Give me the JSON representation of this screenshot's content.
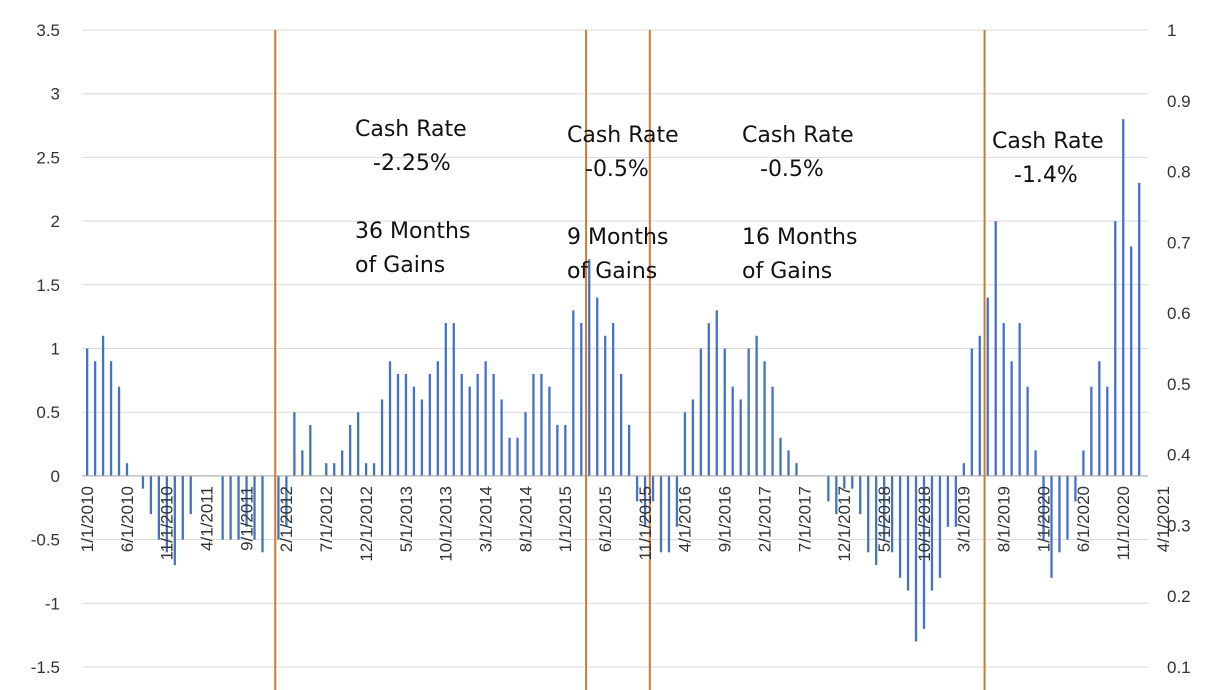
{
  "chart_data": {
    "type": "bar",
    "y_left": {
      "min": -1.5,
      "max": 3.5,
      "ticks": [
        "3.5",
        "3",
        "2.5",
        "2",
        "1.5",
        "1",
        "0.5",
        "0",
        "-0.5",
        "-1",
        "-1.5"
      ]
    },
    "y_right": {
      "min": 0.1,
      "max": 1,
      "ticks": [
        "1",
        "0.9",
        "0.8",
        "0.7",
        "0.6",
        "0.5",
        "0.4",
        "0.3",
        "0.2",
        "0.1"
      ]
    },
    "x_tick_labels": [
      "1/1/2010",
      "6/1/2010",
      "11/1/2010",
      "4/1/2011",
      "9/1/2011",
      "2/1/2012",
      "7/1/2012",
      "12/1/2012",
      "5/1/2013",
      "10/1/2013",
      "3/1/2014",
      "8/1/2014",
      "1/1/2015",
      "6/1/2015",
      "11/1/2015",
      "4/1/2016",
      "9/1/2016",
      "2/1/2017",
      "7/1/2017",
      "12/1/2017",
      "5/1/2018",
      "10/1/2018",
      "3/1/2019",
      "8/1/2019",
      "1/1/2020",
      "6/1/2020",
      "11/1/2020",
      "4/1/2021"
    ],
    "series": [
      {
        "color": "#4472C4",
        "values": [
          1.0,
          0.9,
          1.1,
          0.9,
          0.7,
          0.1,
          0,
          -0.1,
          -0.3,
          -0.5,
          -0.6,
          -0.7,
          -0.5,
          -0.3,
          0,
          0,
          0,
          -0.5,
          -0.5,
          -0.5,
          -0.4,
          -0.5,
          -0.6,
          0,
          -0.5,
          -0.4,
          0.5,
          0.2,
          0.4,
          0,
          0.1,
          0.1,
          0.2,
          0.4,
          0.5,
          0.1,
          0.1,
          0.6,
          0.9,
          0.8,
          0.8,
          0.7,
          0.6,
          0.8,
          0.9,
          1.2,
          1.2,
          0.8,
          0.7,
          0.8,
          0.9,
          0.8,
          0.6,
          0.3,
          0.3,
          0.5,
          0.8,
          0.8,
          0.7,
          0.4,
          0.4,
          1.3,
          1.2,
          1.7,
          1.4,
          1.1,
          1.2,
          0.8,
          0.4,
          -0.2,
          -0.4,
          -0.2,
          -0.6,
          -0.6,
          -0.4,
          0.5,
          0.6,
          1.0,
          1.2,
          1.3,
          1.0,
          0.7,
          0.6,
          1.0,
          1.1,
          0.9,
          0.7,
          0.3,
          0.2,
          0.1,
          0,
          0,
          0,
          -0.2,
          -0.3,
          -0.1,
          -0.1,
          -0.3,
          -0.6,
          -0.7,
          -0.5,
          -0.6,
          -0.8,
          -0.9,
          -1.3,
          -1.2,
          -0.9,
          -0.8,
          -0.4,
          -0.4,
          0.1,
          1.0,
          1.1,
          1.4,
          2.0,
          1.2,
          0.9,
          1.2,
          0.7,
          0.2,
          -0.5,
          -0.8,
          -0.6,
          -0.5,
          -0.2,
          0.2,
          0.7,
          0.9,
          0.7,
          2.0,
          2.8,
          1.8,
          2.3
        ]
      }
    ],
    "period_dividers": [
      "2/1/2012",
      "5/1/2015",
      "1/1/2016",
      "7/1/2019"
    ],
    "annotations": [
      {
        "lines": [
          "Cash Rate",
          "-2.25%",
          "",
          "36 Months",
          "of Gains"
        ]
      },
      {
        "lines": [
          "Cash Rate",
          "-0.5%",
          "",
          "9 Months",
          "of Gains"
        ]
      },
      {
        "lines": [
          "Cash Rate",
          "-0.5%",
          "",
          "16 Months",
          "of Gains"
        ]
      },
      {
        "lines": [
          "Cash Rate",
          "-1.4%"
        ]
      }
    ],
    "divider_color": "#D07A2E",
    "grid": true
  }
}
